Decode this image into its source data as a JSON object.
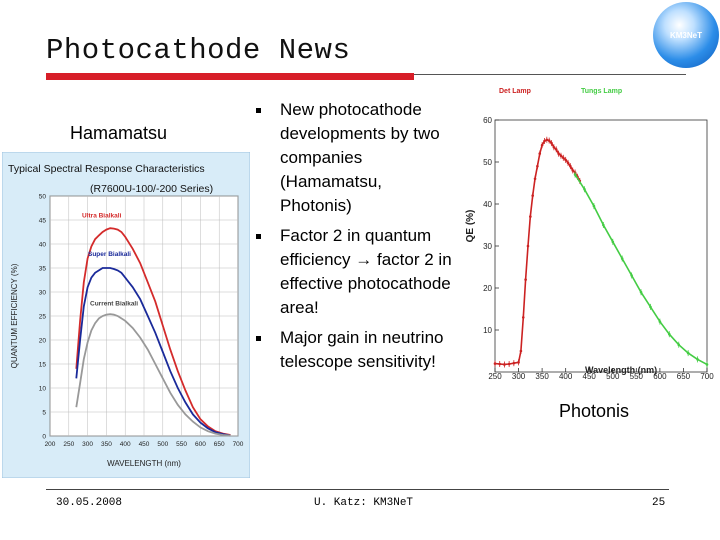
{
  "slide": {
    "title": "Photocathode News",
    "logo_text": "KM3NeT",
    "colors": {
      "accent": "#d71e28",
      "title_rule": "#555555"
    }
  },
  "labels": {
    "left": "Hamamatsu",
    "right": "Photonis"
  },
  "bullets": [
    {
      "text": "New photocathode developments by two companies (Hamamatsu, Photonis)"
    },
    {
      "text": "Factor 2 in quantum efficiency → factor 2 in effective photocathode area!"
    },
    {
      "text": "Major gain in neutrino telescope sensitivity!"
    }
  ],
  "footer": {
    "date": "30.05.2008",
    "author": "U. Katz: KM3NeT",
    "page": "25"
  },
  "chart_data": [
    {
      "type": "line",
      "title": "Typical Spectral Response Characteristics",
      "subtitle": "(R7600U-100/-200 Series)",
      "xlabel": "WAVELENGTH (nm)",
      "ylabel": "QUANTUM EFFICIENCY (%)",
      "xlim": [
        200,
        700
      ],
      "ylim": [
        0,
        50
      ],
      "xticks": [
        200,
        250,
        300,
        350,
        400,
        450,
        500,
        550,
        600,
        650,
        700
      ],
      "yticks": [
        0,
        5,
        10,
        15,
        20,
        25,
        30,
        35,
        40,
        45,
        50
      ],
      "grid": true,
      "series": [
        {
          "name": "Ultra Bialkali",
          "color": "#d42b2b",
          "x": [
            270,
            280,
            290,
            300,
            310,
            320,
            330,
            340,
            350,
            360,
            370,
            380,
            390,
            400,
            420,
            440,
            460,
            480,
            500,
            520,
            540,
            560,
            580,
            600,
            620,
            640,
            660,
            680
          ],
          "y": [
            14,
            24,
            32,
            37,
            39.5,
            41,
            41.8,
            42.5,
            43,
            43.3,
            43.2,
            43,
            42.5,
            41.5,
            39,
            36,
            32,
            28,
            23,
            18,
            13.5,
            9.5,
            6,
            3.5,
            2,
            1,
            0.5,
            0.2
          ]
        },
        {
          "name": "Super Bialkali",
          "color": "#1a2a9a",
          "x": [
            270,
            280,
            290,
            300,
            310,
            320,
            330,
            340,
            350,
            360,
            370,
            380,
            390,
            400,
            420,
            440,
            460,
            480,
            500,
            520,
            540,
            560,
            580,
            600,
            620,
            640,
            660,
            680
          ],
          "y": [
            12,
            20,
            27,
            31,
            33,
            34,
            34.5,
            35,
            35,
            35,
            34.8,
            34.5,
            34,
            33,
            31,
            28.5,
            25,
            21.5,
            17.5,
            13.5,
            10,
            7,
            4.5,
            2.8,
            1.6,
            0.8,
            0.4,
            0.1
          ]
        },
        {
          "name": "Current Bialkali",
          "color": "#999999",
          "x": [
            270,
            280,
            290,
            300,
            310,
            320,
            330,
            340,
            350,
            360,
            370,
            380,
            390,
            400,
            420,
            440,
            460,
            480,
            500,
            520,
            540,
            560,
            580,
            600,
            620,
            640,
            660,
            680
          ],
          "y": [
            6,
            11,
            16,
            19.5,
            22,
            23.5,
            24.5,
            25,
            25.3,
            25.4,
            25.3,
            25,
            24.5,
            24,
            22.5,
            20.5,
            18,
            15,
            12,
            9,
            6.5,
            4.5,
            3,
            1.8,
            1,
            0.5,
            0.2,
            0.1
          ]
        }
      ]
    },
    {
      "type": "line",
      "legend": [
        "Det Lamp",
        "Tungs Lamp"
      ],
      "xlabel": "Wavelength (nm)",
      "ylabel": "QE (%)",
      "xlim": [
        250,
        700
      ],
      "ylim": [
        0,
        60
      ],
      "xticks": [
        250,
        300,
        350,
        400,
        450,
        500,
        550,
        600,
        650,
        700
      ],
      "yticks": [
        10,
        20,
        30,
        40,
        50,
        60
      ],
      "grid": false,
      "series": [
        {
          "name": "Det Lamp",
          "color": "#cc2222",
          "x": [
            250,
            260,
            270,
            280,
            290,
            300,
            305,
            310,
            315,
            320,
            325,
            330,
            335,
            340,
            345,
            350,
            355,
            360,
            365,
            370,
            375,
            380,
            385,
            390,
            395,
            400,
            405,
            410,
            415,
            420,
            425,
            430
          ],
          "y": [
            2,
            1.9,
            1.8,
            1.9,
            2.1,
            2.3,
            5,
            13,
            22,
            30,
            37,
            42,
            46,
            49,
            52,
            54,
            55,
            55.3,
            55.1,
            54.5,
            53.5,
            53,
            52,
            51.5,
            51,
            50.5,
            49.8,
            49,
            48,
            47.5,
            46.5,
            45.5
          ]
        },
        {
          "name": "Tungs Lamp",
          "color": "#44cc44",
          "x": [
            420,
            440,
            460,
            480,
            500,
            520,
            540,
            560,
            580,
            600,
            620,
            640,
            660,
            680,
            700
          ],
          "y": [
            47,
            43.5,
            39.5,
            35,
            31,
            27,
            23,
            19,
            15.5,
            12,
            9,
            6.5,
            4.5,
            3,
            1.8
          ]
        }
      ]
    }
  ]
}
